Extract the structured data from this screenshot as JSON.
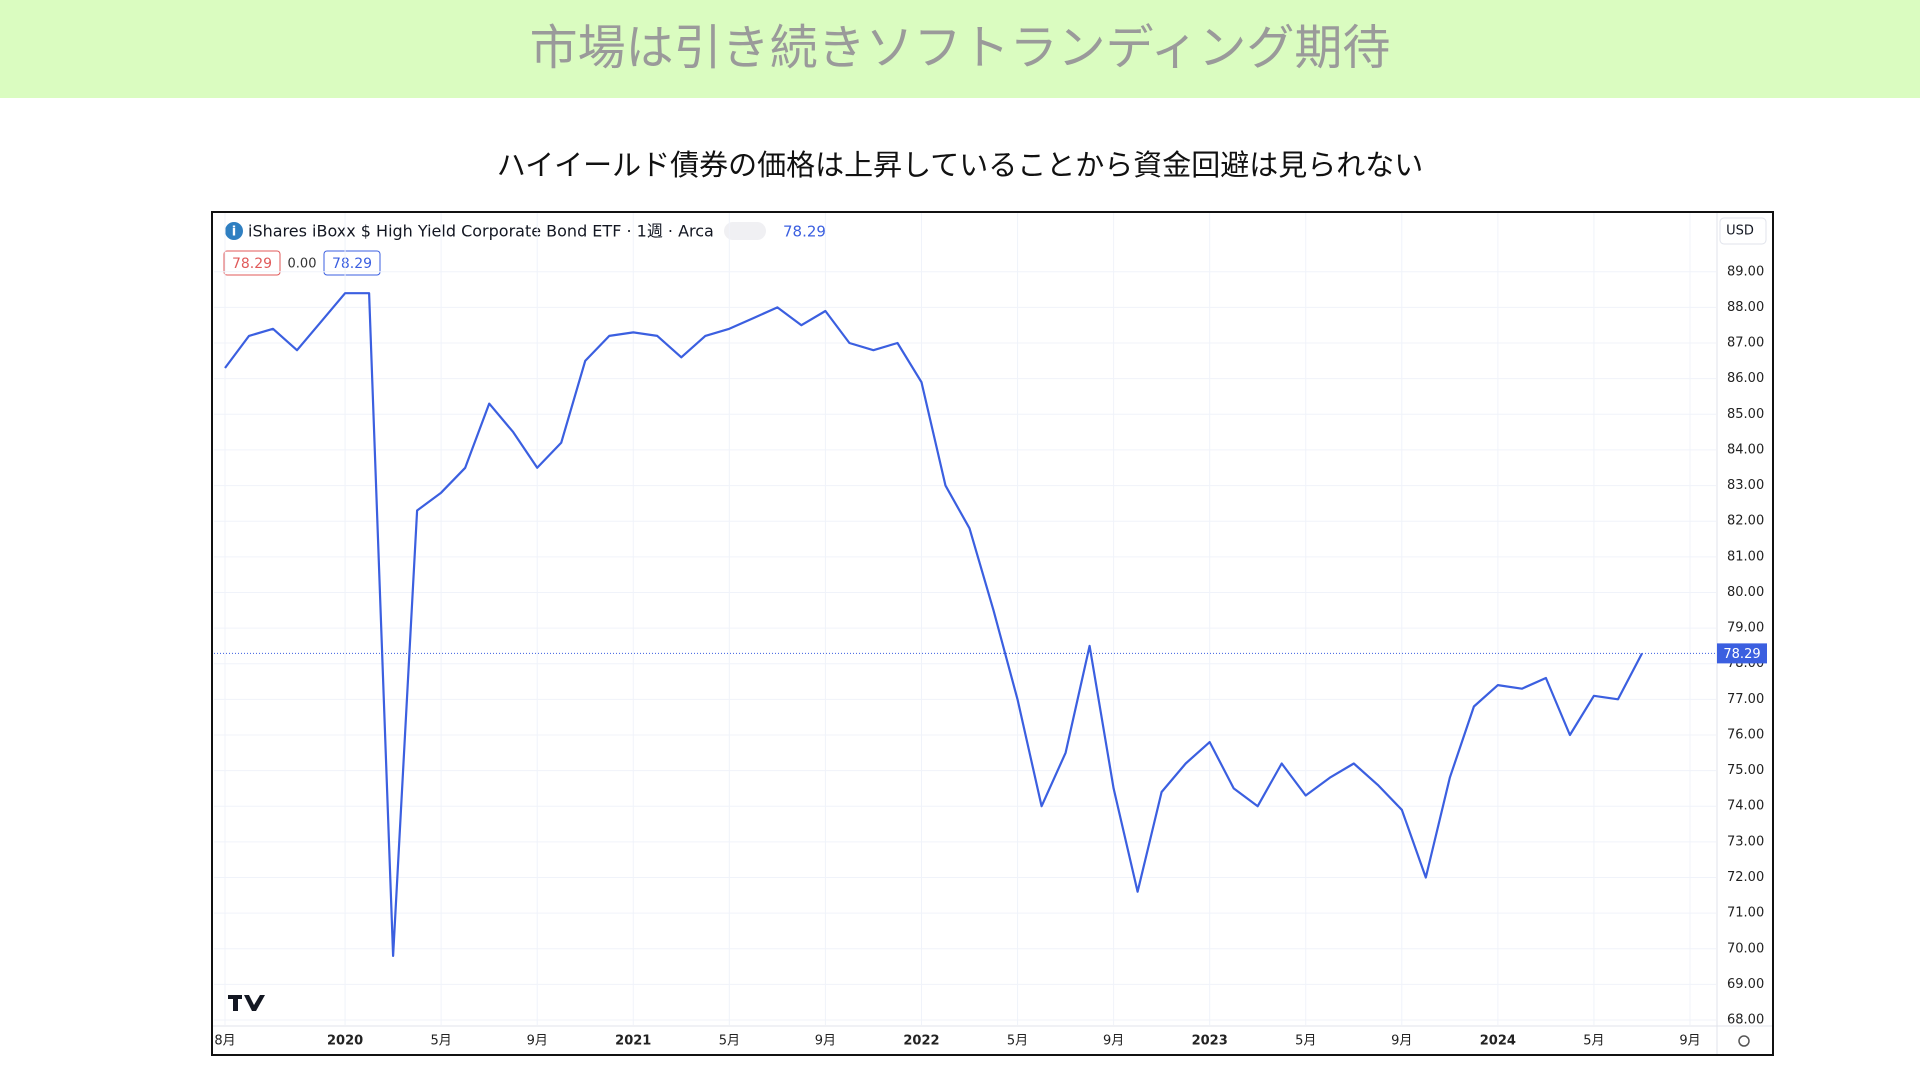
{
  "chart_data": {
    "type": "line",
    "title": "市場は引き続きソフトランディング期待",
    "subtitle": "ハイイールド債券の価格は上昇していることから資金回避は見られない",
    "ohlc_labels": [
      "78.29",
      "0.00",
      "78.29"
    ],
    "legend_value": "78.29",
    "currency": "USD",
    "last_price": {
      "value": 78.29,
      "label": "78.29"
    },
    "x": [
      "2019-08",
      "2019-09",
      "2019-10",
      "2019-11",
      "2019-12",
      "2020-01",
      "2020-02",
      "2020-03",
      "2020-04",
      "2020-05",
      "2020-06",
      "2020-07",
      "2020-08",
      "2020-09",
      "2020-10",
      "2020-11",
      "2020-12",
      "2021-01",
      "2021-02",
      "2021-03",
      "2021-04",
      "2021-05",
      "2021-06",
      "2021-07",
      "2021-08",
      "2021-09",
      "2021-10",
      "2021-11",
      "2021-12",
      "2022-01",
      "2022-02",
      "2022-03",
      "2022-04",
      "2022-05",
      "2022-06",
      "2022-07",
      "2022-08",
      "2022-09",
      "2022-10",
      "2022-11",
      "2022-12",
      "2023-01",
      "2023-02",
      "2023-03",
      "2023-04",
      "2023-05",
      "2023-06",
      "2023-07",
      "2023-08",
      "2023-09",
      "2023-10",
      "2023-11",
      "2023-12",
      "2024-01",
      "2024-02",
      "2024-03",
      "2024-04",
      "2024-05",
      "2024-06",
      "2024-07"
    ],
    "series": [
      {
        "name": "iShares iBoxx $ High Yield Corporate Bond ETF · 1週 · Arca",
        "color": "#3b5fe0",
        "values": [
          86.3,
          87.2,
          87.4,
          86.8,
          87.6,
          88.4,
          88.4,
          69.8,
          82.3,
          82.8,
          83.5,
          85.3,
          84.5,
          83.5,
          84.2,
          86.5,
          87.2,
          87.3,
          87.2,
          86.6,
          87.2,
          87.4,
          87.7,
          88.0,
          87.5,
          87.9,
          87.0,
          86.8,
          87.0,
          85.9,
          83.0,
          81.8,
          79.5,
          77.0,
          74.0,
          75.5,
          78.5,
          74.5,
          71.6,
          74.4,
          75.2,
          75.8,
          74.5,
          74.0,
          75.2,
          74.3,
          74.8,
          75.2,
          74.6,
          73.9,
          72.0,
          74.8,
          76.8,
          77.4,
          77.3,
          77.6,
          76.0,
          77.1,
          77.0,
          78.29
        ]
      }
    ],
    "xlim": [
      "2019-08",
      "2024-09"
    ],
    "xticks": [
      {
        "value": "2019-08",
        "label": "8月"
      },
      {
        "value": "2020-01",
        "label": "2020"
      },
      {
        "value": "2020-05",
        "label": "5月"
      },
      {
        "value": "2020-09",
        "label": "9月"
      },
      {
        "value": "2021-01",
        "label": "2021"
      },
      {
        "value": "2021-05",
        "label": "5月"
      },
      {
        "value": "2021-09",
        "label": "9月"
      },
      {
        "value": "2022-01",
        "label": "2022"
      },
      {
        "value": "2022-05",
        "label": "5月"
      },
      {
        "value": "2022-09",
        "label": "9月"
      },
      {
        "value": "2023-01",
        "label": "2023"
      },
      {
        "value": "2023-05",
        "label": "5月"
      },
      {
        "value": "2023-09",
        "label": "9月"
      },
      {
        "value": "2024-01",
        "label": "2024"
      },
      {
        "value": "2024-05",
        "label": "5月"
      },
      {
        "value": "2024-09",
        "label": "9月"
      }
    ],
    "ylim": [
      67.86,
      90.65
    ],
    "yticks": [
      {
        "value": 68,
        "label": "68.00"
      },
      {
        "value": 69,
        "label": "69.00"
      },
      {
        "value": 70,
        "label": "70.00"
      },
      {
        "value": 71,
        "label": "71.00"
      },
      {
        "value": 72,
        "label": "72.00"
      },
      {
        "value": 73,
        "label": "73.00"
      },
      {
        "value": 74,
        "label": "74.00"
      },
      {
        "value": 75,
        "label": "75.00"
      },
      {
        "value": 76,
        "label": "76.00"
      },
      {
        "value": 77,
        "label": "77.00"
      },
      {
        "value": 78,
        "label": "78.00"
      },
      {
        "value": 79,
        "label": "79.00"
      },
      {
        "value": 80,
        "label": "80.00"
      },
      {
        "value": 81,
        "label": "81.00"
      },
      {
        "value": 82,
        "label": "82.00"
      },
      {
        "value": 83,
        "label": "83.00"
      },
      {
        "value": 84,
        "label": "84.00"
      },
      {
        "value": 85,
        "label": "85.00"
      },
      {
        "value": 86,
        "label": "86.00"
      },
      {
        "value": 87,
        "label": "87.00"
      },
      {
        "value": 88,
        "label": "88.00"
      },
      {
        "value": 89,
        "label": "89.00"
      }
    ],
    "grid": true
  }
}
